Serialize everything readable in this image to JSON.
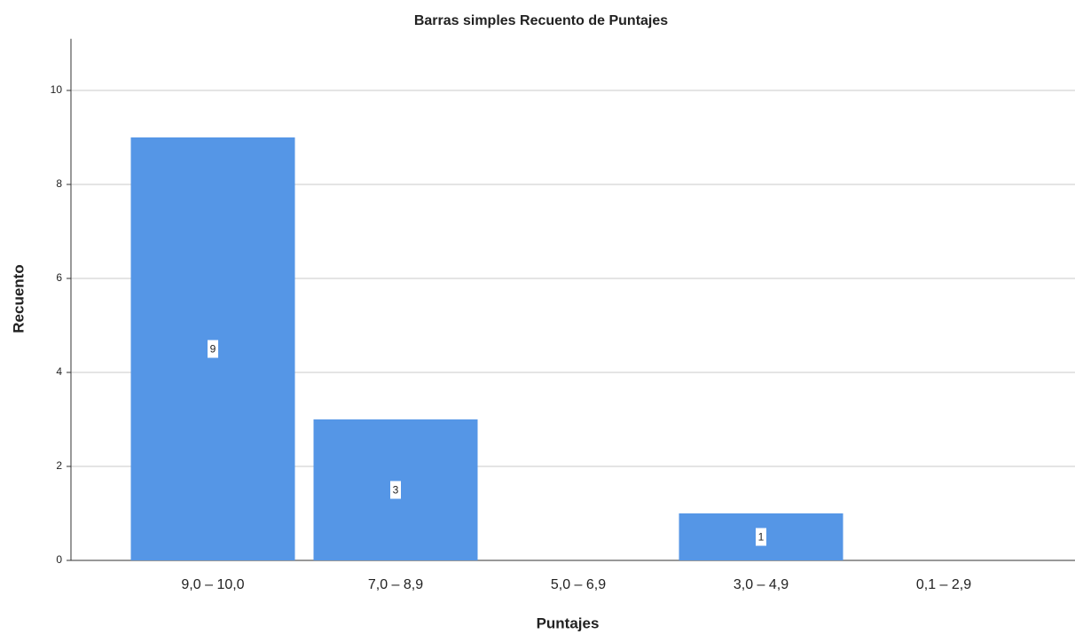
{
  "chart_data": {
    "type": "bar",
    "title": "Barras simples Recuento de Puntajes",
    "x_label": "Puntajes",
    "y_label": "Recuento",
    "categories": [
      "9,0 – 10,0",
      "7,0 – 8,9",
      "5,0 – 6,9",
      "3,0 – 4,9",
      "0,1 – 2,9"
    ],
    "values": [
      9,
      3,
      0,
      1,
      0
    ],
    "color": "#5596e6",
    "ylim": [
      0,
      11.1
    ],
    "yticks": [
      0,
      2,
      4,
      6,
      8,
      10
    ],
    "grid": true
  }
}
